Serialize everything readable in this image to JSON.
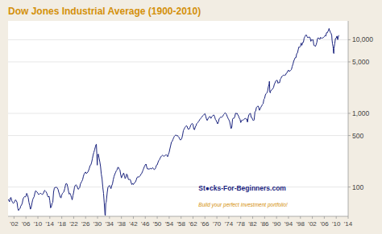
{
  "chart_data": {
    "type": "line",
    "title": "Dow Jones Industrial Average (1900-2010)",
    "annotations": [
      "St●cks-For-Beginners.com",
      "Build your perfect investment portfolio!"
    ],
    "color": "#1a237e",
    "log": "y",
    "grid": true,
    "xlim": [
      1900,
      2014
    ],
    "xticks": [
      {
        "value": 1902,
        "label": "'02"
      },
      {
        "value": 1906,
        "label": "'06"
      },
      {
        "value": 1910,
        "label": "'10"
      },
      {
        "value": 1914,
        "label": "'14"
      },
      {
        "value": 1918,
        "label": "'18"
      },
      {
        "value": 1922,
        "label": "'22"
      },
      {
        "value": 1926,
        "label": "'26"
      },
      {
        "value": 1930,
        "label": "'30"
      },
      {
        "value": 1934,
        "label": "'34"
      },
      {
        "value": 1938,
        "label": "'38"
      },
      {
        "value": 1942,
        "label": "'42"
      },
      {
        "value": 1946,
        "label": "'46"
      },
      {
        "value": 1950,
        "label": "'50"
      },
      {
        "value": 1954,
        "label": "'54"
      },
      {
        "value": 1958,
        "label": "'58"
      },
      {
        "value": 1962,
        "label": "'62"
      },
      {
        "value": 1966,
        "label": "'66"
      },
      {
        "value": 1970,
        "label": "'70"
      },
      {
        "value": 1974,
        "label": "'74"
      },
      {
        "value": 1978,
        "label": "'78"
      },
      {
        "value": 1982,
        "label": "'82"
      },
      {
        "value": 1986,
        "label": "'86"
      },
      {
        "value": 1990,
        "label": "'90"
      },
      {
        "value": 1994,
        "label": "'94"
      },
      {
        "value": 1998,
        "label": "'98"
      },
      {
        "value": 2002,
        "label": "'02"
      },
      {
        "value": 2006,
        "label": "'06"
      },
      {
        "value": 2010,
        "label": "'10"
      },
      {
        "value": 2014,
        "label": "'14"
      }
    ],
    "ylim": [
      40,
      18000
    ],
    "yticks": [
      100,
      500,
      {
        "value": 1000,
        "label": "1,000"
      },
      {
        "value": 5000,
        "label": "5,000"
      },
      {
        "value": 10000,
        "label": "10,000"
      }
    ],
    "x": [
      1900,
      1900.25,
      1900.5,
      1900.75,
      1901,
      1901.25,
      1901.5,
      1901.75,
      1902,
      1902.25,
      1902.5,
      1902.75,
      1903,
      1903.25,
      1903.5,
      1903.75,
      1904,
      1904.25,
      1904.5,
      1904.75,
      1905,
      1905.25,
      1905.5,
      1905.75,
      1906,
      1906.25,
      1906.5,
      1906.75,
      1907,
      1907.25,
      1907.5,
      1907.75,
      1908,
      1908.25,
      1908.5,
      1908.75,
      1909,
      1909.25,
      1909.5,
      1909.75,
      1910,
      1910.25,
      1910.5,
      1910.75,
      1911,
      1911.25,
      1911.5,
      1911.75,
      1912,
      1912.25,
      1912.5,
      1912.75,
      1913,
      1913.25,
      1913.5,
      1913.75,
      1914,
      1914.25,
      1914.5,
      1914.75,
      1915,
      1915.25,
      1915.5,
      1915.75,
      1916,
      1916.25,
      1916.5,
      1916.75,
      1917,
      1917.25,
      1917.5,
      1917.75,
      1918,
      1918.25,
      1918.5,
      1918.75,
      1919,
      1919.25,
      1919.5,
      1919.75,
      1920,
      1920.25,
      1920.5,
      1920.75,
      1921,
      1921.25,
      1921.5,
      1921.75,
      1922,
      1922.25,
      1922.5,
      1922.75,
      1923,
      1923.25,
      1923.5,
      1923.75,
      1924,
      1924.25,
      1924.5,
      1924.75,
      1925,
      1925.25,
      1925.5,
      1925.75,
      1926,
      1926.25,
      1926.5,
      1926.75,
      1927,
      1927.25,
      1927.5,
      1927.75,
      1928,
      1928.25,
      1928.5,
      1928.75,
      1929,
      1929.25,
      1929.5,
      1929.6,
      1929.75,
      1929.9,
      1930,
      1930.25,
      1930.5,
      1930.75,
      1931,
      1931.25,
      1931.5,
      1931.75,
      1932,
      1932.25,
      1932.5,
      1932.6,
      1932.75,
      1932.9,
      1933,
      1933.25,
      1933.5,
      1933.75,
      1934,
      1934.25,
      1934.5,
      1934.75,
      1935,
      1935.25,
      1935.5,
      1935.75,
      1936,
      1936.25,
      1936.5,
      1936.75,
      1937,
      1937.25,
      1937.5,
      1937.75,
      1938,
      1938.25,
      1938.5,
      1938.75,
      1939,
      1939.25,
      1939.5,
      1939.75,
      1940,
      1940.25,
      1940.5,
      1940.75,
      1941,
      1941.25,
      1941.5,
      1941.75,
      1942,
      1942.25,
      1942.5,
      1942.75,
      1943,
      1943.25,
      1943.5,
      1943.75,
      1944,
      1944.25,
      1944.5,
      1944.75,
      1945,
      1945.25,
      1945.5,
      1945.75,
      1946,
      1946.25,
      1946.5,
      1946.75,
      1947,
      1947.25,
      1947.5,
      1947.75,
      1948,
      1948.25,
      1948.5,
      1948.75,
      1949,
      1949.25,
      1949.5,
      1949.75,
      1950,
      1950.25,
      1950.5,
      1950.75,
      1951,
      1951.25,
      1951.5,
      1951.75,
      1952,
      1952.25,
      1952.5,
      1952.75,
      1953,
      1953.25,
      1953.5,
      1953.75,
      1954,
      1954.25,
      1954.5,
      1954.75,
      1955,
      1955.25,
      1955.5,
      1955.75,
      1956,
      1956.25,
      1956.5,
      1956.75,
      1957,
      1957.25,
      1957.5,
      1957.75,
      1958,
      1958.25,
      1958.5,
      1958.75,
      1959,
      1959.25,
      1959.5,
      1959.75,
      1960,
      1960.25,
      1960.5,
      1960.75,
      1961,
      1961.25,
      1961.5,
      1961.75,
      1962,
      1962.25,
      1962.5,
      1962.75,
      1963,
      1963.25,
      1963.5,
      1963.75,
      1964,
      1964.25,
      1964.5,
      1964.75,
      1965,
      1965.25,
      1965.5,
      1965.75,
      1966,
      1966.25,
      1966.5,
      1966.75,
      1967,
      1967.25,
      1967.5,
      1967.75,
      1968,
      1968.25,
      1968.5,
      1968.75,
      1969,
      1969.25,
      1969.5,
      1969.75,
      1970,
      1970.25,
      1970.5,
      1970.75,
      1971,
      1971.25,
      1971.5,
      1971.75,
      1972,
      1972.25,
      1972.5,
      1972.75,
      1973,
      1973.25,
      1973.5,
      1973.75,
      1974,
      1974.25,
      1974.5,
      1974.75,
      1975,
      1975.25,
      1975.5,
      1975.75,
      1976,
      1976.25,
      1976.5,
      1976.75,
      1977,
      1977.25,
      1977.5,
      1977.75,
      1978,
      1978.25,
      1978.5,
      1978.75,
      1979,
      1979.25,
      1979.5,
      1979.75,
      1980,
      1980.25,
      1980.5,
      1980.75,
      1981,
      1981.25,
      1981.5,
      1981.75,
      1982,
      1982.25,
      1982.5,
      1982.75,
      1983,
      1983.25,
      1983.5,
      1983.75,
      1984,
      1984.25,
      1984.5,
      1984.75,
      1985,
      1985.25,
      1985.5,
      1985.75,
      1986,
      1986.25,
      1986.5,
      1986.75,
      1987,
      1987.25,
      1987.5,
      1987.6,
      1987.75,
      1987.9,
      1988,
      1988.25,
      1988.5,
      1988.75,
      1989,
      1989.25,
      1989.5,
      1989.75,
      1990,
      1990.25,
      1990.5,
      1990.75,
      1991,
      1991.25,
      1991.5,
      1991.75,
      1992,
      1992.25,
      1992.5,
      1992.75,
      1993,
      1993.25,
      1993.5,
      1993.75,
      1994,
      1994.25,
      1994.5,
      1994.75,
      1995,
      1995.25,
      1995.5,
      1995.75,
      1996,
      1996.25,
      1996.5,
      1996.75,
      1997,
      1997.25,
      1997.5,
      1997.75,
      1998,
      1998.25,
      1998.5,
      1998.75,
      1999,
      1999.25,
      1999.5,
      1999.75,
      2000,
      2000.25,
      2000.5,
      2000.75,
      2001,
      2001.25,
      2001.5,
      2001.75,
      2002,
      2002.25,
      2002.5,
      2002.75,
      2003,
      2003.25,
      2003.5,
      2003.75,
      2004,
      2004.25,
      2004.5,
      2004.75,
      2005,
      2005.25,
      2005.5,
      2005.75,
      2006,
      2006.25,
      2006.5,
      2006.75,
      2007,
      2007.25,
      2007.5,
      2007.6,
      2007.75,
      2007.9,
      2008,
      2008.25,
      2008.5,
      2008.6,
      2008.75,
      2008.9,
      2009,
      2009.1,
      2009.2,
      2009.25,
      2009.5,
      2009.75,
      2010,
      2010.25,
      2010.5,
      2010.75,
      2010.9
    ],
    "values": [
      68,
      66,
      63,
      71,
      72,
      65,
      62,
      60,
      61,
      64,
      67,
      65,
      62,
      52,
      48,
      50,
      51,
      55,
      57,
      60,
      68,
      72,
      74,
      73,
      75,
      82,
      78,
      72,
      62,
      56,
      50,
      53,
      60,
      67,
      71,
      74,
      83,
      89,
      87,
      85,
      82,
      79,
      80,
      82,
      82,
      80,
      79,
      81,
      85,
      90,
      88,
      86,
      82,
      76,
      73,
      75,
      65,
      52,
      54,
      60,
      62,
      85,
      96,
      99,
      98,
      100,
      97,
      93,
      85,
      79,
      73,
      71,
      78,
      82,
      84,
      87,
      95,
      106,
      112,
      110,
      100,
      88,
      80,
      82,
      78,
      72,
      67,
      76,
      85,
      98,
      105,
      107,
      105,
      99,
      93,
      95,
      98,
      110,
      115,
      120,
      126,
      140,
      150,
      156,
      160,
      152,
      155,
      160,
      168,
      180,
      195,
      200,
      215,
      240,
      270,
      295,
      318,
      350,
      376,
      381,
      280,
      198,
      268,
      280,
      248,
      220,
      190,
      150,
      130,
      100,
      82,
      60,
      42,
      41,
      60,
      62,
      68,
      85,
      100,
      102,
      105,
      100,
      95,
      104,
      110,
      125,
      138,
      148,
      156,
      165,
      170,
      184,
      185,
      175,
      170,
      148,
      133,
      140,
      148,
      155,
      143,
      130,
      135,
      150,
      145,
      130,
      125,
      128,
      125,
      115,
      108,
      112,
      108,
      112,
      115,
      118,
      126,
      135,
      138,
      136,
      138,
      142,
      148,
      152,
      160,
      170,
      180,
      192,
      200,
      205,
      185,
      175,
      178,
      174,
      177,
      180,
      175,
      180,
      183,
      177,
      172,
      175,
      183,
      198,
      200,
      215,
      228,
      235,
      248,
      258,
      265,
      270,
      265,
      262,
      265,
      270,
      275,
      268,
      258,
      280,
      295,
      330,
      365,
      405,
      415,
      440,
      465,
      488,
      500,
      510,
      495,
      500,
      490,
      475,
      450,
      435,
      440,
      460,
      505,
      580,
      610,
      640,
      660,
      680,
      668,
      620,
      608,
      615,
      648,
      692,
      718,
      730,
      705,
      610,
      600,
      650,
      680,
      726,
      745,
      762,
      790,
      822,
      845,
      874,
      895,
      930,
      950,
      970,
      990,
      920,
      842,
      800,
      840,
      875,
      900,
      904,
      855,
      895,
      918,
      944,
      950,
      900,
      830,
      800,
      760,
      720,
      760,
      840,
      870,
      890,
      885,
      890,
      920,
      960,
      985,
      1020,
      1000,
      960,
      900,
      855,
      820,
      780,
      700,
      620,
      650,
      832,
      860,
      858,
      900,
      1005,
      990,
      1004,
      960,
      920,
      862,
      831,
      750,
      800,
      810,
      805,
      820,
      845,
      855,
      838,
      840,
      760,
      880,
      964,
      985,
      1000,
      880,
      875,
      820,
      795,
      820,
      1047,
      1075,
      1200,
      1230,
      1260,
      1220,
      1100,
      1150,
      1212,
      1260,
      1320,
      1350,
      1550,
      1600,
      1780,
      1850,
      1900,
      2000,
      2300,
      2500,
      2720,
      1940,
      1900,
      2000,
      2070,
      2100,
      2170,
      2250,
      2480,
      2600,
      2753,
      2810,
      2800,
      2560,
      2634,
      2600,
      2900,
      3000,
      3170,
      3200,
      3300,
      3280,
      3300,
      3310,
      3500,
      3550,
      3754,
      3870,
      3700,
      3780,
      3835,
      3950,
      4350,
      4650,
      5117,
      5400,
      5700,
      5700,
      6450,
      6600,
      7300,
      8000,
      7900,
      8100,
      9000,
      8400,
      9180,
      9200,
      10500,
      11000,
      11500,
      11600,
      11000,
      10600,
      10800,
      10900,
      10600,
      9500,
      10000,
      9900,
      10000,
      8400,
      8340,
      8100,
      8500,
      9200,
      10450,
      10600,
      10400,
      10100,
      10780,
      10500,
      10500,
      10600,
      10720,
      11000,
      11400,
      11200,
      12460,
      12400,
      13000,
      13700,
      14200,
      13300,
      13260,
      12600,
      12300,
      11400,
      10000,
      8800,
      8200,
      7600,
      6600,
      6500,
      7600,
      8800,
      10400,
      10500,
      11200,
      10000,
      11200,
      11500
    ]
  }
}
